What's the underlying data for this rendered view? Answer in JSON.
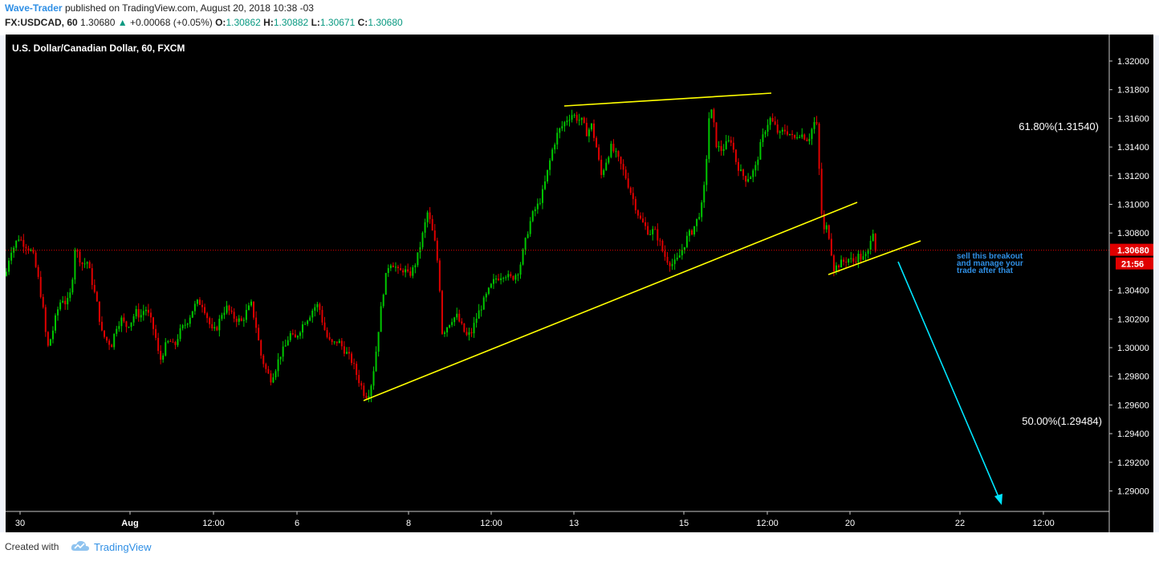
{
  "header": {
    "author": "Wave-Trader",
    "published": "published on TradingView.com, August 20, 2018 10:38 -03",
    "symbol": "FX:USDCAD, 60",
    "last": "1.30680",
    "change": "+0.00068 (+0.05%)",
    "o_label": "O:",
    "o_value": "1.30862",
    "h_label": "H:",
    "h_value": "1.30882",
    "l_label": "L:",
    "l_value": "1.30671",
    "c_label": "C:",
    "c_value": "1.30680"
  },
  "footer": {
    "created": "Created with",
    "brand": "TradingView"
  },
  "chart_data": {
    "type": "candlestick",
    "title": "U.S. Dollar/Canadian Dollar, 60, FXCM",
    "ylim": [
      1.2885,
      1.3222
    ],
    "y_ticks": [
      "1.32000",
      "1.31800",
      "1.31600",
      "1.31400",
      "1.31200",
      "1.31000",
      "1.30800",
      "1.30400",
      "1.30200",
      "1.30000",
      "1.29800",
      "1.29600",
      "1.29400",
      "1.29200",
      "1.29000"
    ],
    "x_ticks": [
      "30",
      "Aug",
      "12:00",
      "6",
      "8",
      "12:00",
      "13",
      "15",
      "12:00",
      "20",
      "22",
      "12:00"
    ],
    "last_price": "1.30680",
    "countdown": "21:56",
    "annotations": {
      "fib_high": "61.80%(1.31540)",
      "fib_low": "50.00%(1.29484)",
      "callout": [
        "sell this breakout",
        "and manage your",
        "trade after that"
      ]
    },
    "colors": {
      "up": "#00c800",
      "down": "#e00000",
      "trendline": "#ffff00",
      "target_arrow": "#00e5ff",
      "price_line": "#e00000",
      "callout_bg": "#d0d0d0",
      "callout_text": "#2f8fe5"
    },
    "close_path": [
      [
        0,
        1.305
      ],
      [
        6,
        1.3068
      ],
      [
        10,
        1.307
      ],
      [
        16,
        1.3077
      ],
      [
        22,
        1.3073
      ],
      [
        28,
        1.307
      ],
      [
        34,
        1.3065
      ],
      [
        40,
        1.305
      ],
      [
        46,
        1.303
      ],
      [
        52,
        1.2999
      ],
      [
        58,
        1.301
      ],
      [
        64,
        1.3025
      ],
      [
        70,
        1.3035
      ],
      [
        76,
        1.303
      ],
      [
        82,
        1.304
      ],
      [
        86,
        1.307
      ],
      [
        90,
        1.3065
      ],
      [
        96,
        1.3058
      ],
      [
        102,
        1.306
      ],
      [
        108,
        1.3045
      ],
      [
        114,
        1.303
      ],
      [
        120,
        1.301
      ],
      [
        126,
        1.3005
      ],
      [
        132,
        1.3002
      ],
      [
        138,
        1.3015
      ],
      [
        144,
        1.302
      ],
      [
        150,
        1.3015
      ],
      [
        156,
        1.3018
      ],
      [
        162,
        1.3025
      ],
      [
        168,
        1.3022
      ],
      [
        174,
        1.3028
      ],
      [
        180,
        1.302
      ],
      [
        186,
        1.301
      ],
      [
        192,
        1.299
      ],
      [
        198,
        1.3
      ],
      [
        204,
        1.3005
      ],
      [
        210,
        1.3
      ],
      [
        216,
        1.301
      ],
      [
        222,
        1.3015
      ],
      [
        228,
        1.302
      ],
      [
        234,
        1.3028
      ],
      [
        240,
        1.3032
      ],
      [
        246,
        1.303
      ],
      [
        252,
        1.302
      ],
      [
        258,
        1.301
      ],
      [
        264,
        1.3015
      ],
      [
        270,
        1.3025
      ],
      [
        276,
        1.3028
      ],
      [
        282,
        1.3022
      ],
      [
        288,
        1.302
      ],
      [
        294,
        1.3018
      ],
      [
        300,
        1.3025
      ],
      [
        306,
        1.303
      ],
      [
        312,
        1.3015
      ],
      [
        318,
        1.2995
      ],
      [
        324,
        1.2985
      ],
      [
        330,
        1.2978
      ],
      [
        336,
        1.2985
      ],
      [
        342,
        1.2995
      ],
      [
        348,
        1.3
      ],
      [
        354,
        1.301
      ],
      [
        360,
        1.3005
      ],
      [
        366,
        1.3012
      ],
      [
        372,
        1.3018
      ],
      [
        378,
        1.3022
      ],
      [
        384,
        1.3028
      ],
      [
        390,
        1.303
      ],
      [
        396,
        1.3015
      ],
      [
        402,
        1.3005
      ],
      [
        408,
        1.3002
      ],
      [
        414,
        1.3005
      ],
      [
        420,
        1.3
      ],
      [
        426,
        1.2995
      ],
      [
        432,
        1.299
      ],
      [
        438,
        1.298
      ],
      [
        444,
        1.2972
      ],
      [
        448,
        1.2966
      ],
      [
        454,
        1.297
      ],
      [
        460,
        1.299
      ],
      [
        466,
        1.302
      ],
      [
        472,
        1.3045
      ],
      [
        478,
        1.306
      ],
      [
        484,
        1.3058
      ],
      [
        490,
        1.3052
      ],
      [
        496,
        1.3055
      ],
      [
        502,
        1.305
      ],
      [
        508,
        1.3055
      ],
      [
        514,
        1.3065
      ],
      [
        520,
        1.308
      ],
      [
        526,
        1.3095
      ],
      [
        530,
        1.3085
      ],
      [
        536,
        1.307
      ],
      [
        540,
        1.305
      ],
      [
        544,
        1.301
      ],
      [
        550,
        1.3015
      ],
      [
        556,
        1.302
      ],
      [
        562,
        1.3022
      ],
      [
        568,
        1.3015
      ],
      [
        574,
        1.3008
      ],
      [
        580,
        1.301
      ],
      [
        586,
        1.302
      ],
      [
        592,
        1.3028
      ],
      [
        598,
        1.3035
      ],
      [
        604,
        1.3042
      ],
      [
        610,
        1.3048
      ],
      [
        616,
        1.305
      ],
      [
        622,
        1.3052
      ],
      [
        628,
        1.3048
      ],
      [
        634,
        1.305
      ],
      [
        640,
        1.3055
      ],
      [
        646,
        1.307
      ],
      [
        652,
        1.3085
      ],
      [
        658,
        1.3095
      ],
      [
        664,
        1.31
      ],
      [
        670,
        1.311
      ],
      [
        676,
        1.3125
      ],
      [
        682,
        1.314
      ],
      [
        688,
        1.315
      ],
      [
        694,
        1.3155
      ],
      [
        700,
        1.316
      ],
      [
        706,
        1.3163
      ],
      [
        712,
        1.316
      ],
      [
        718,
        1.3158
      ],
      [
        724,
        1.315
      ],
      [
        730,
        1.3155
      ],
      [
        736,
        1.314
      ],
      [
        742,
        1.312
      ],
      [
        748,
        1.313
      ],
      [
        754,
        1.314
      ],
      [
        760,
        1.3135
      ],
      [
        766,
        1.3128
      ],
      [
        772,
        1.312
      ],
      [
        778,
        1.311
      ],
      [
        784,
        1.31
      ],
      [
        790,
        1.309
      ],
      [
        796,
        1.3085
      ],
      [
        802,
        1.308
      ],
      [
        808,
        1.3082
      ],
      [
        814,
        1.3075
      ],
      [
        820,
        1.3065
      ],
      [
        826,
        1.306
      ],
      [
        832,
        1.3058
      ],
      [
        838,
        1.3062
      ],
      [
        844,
        1.307
      ],
      [
        850,
        1.3078
      ],
      [
        856,
        1.3082
      ],
      [
        862,
        1.309
      ],
      [
        868,
        1.31
      ],
      [
        872,
        1.312
      ],
      [
        876,
        1.316
      ],
      [
        880,
        1.3165
      ],
      [
        886,
        1.314
      ],
      [
        892,
        1.3138
      ],
      [
        898,
        1.3142
      ],
      [
        904,
        1.3145
      ],
      [
        910,
        1.313
      ],
      [
        916,
        1.3122
      ],
      [
        922,
        1.3118
      ],
      [
        928,
        1.312
      ],
      [
        934,
        1.3125
      ],
      [
        940,
        1.314
      ],
      [
        946,
        1.3152
      ],
      [
        952,
        1.316
      ],
      [
        958,
        1.3155
      ],
      [
        964,
        1.3148
      ],
      [
        970,
        1.3152
      ],
      [
        976,
        1.315
      ],
      [
        982,
        1.3145
      ],
      [
        988,
        1.315
      ],
      [
        994,
        1.3148
      ],
      [
        1000,
        1.3145
      ],
      [
        1006,
        1.3155
      ],
      [
        1010,
        1.316
      ],
      [
        1014,
        1.312
      ],
      [
        1018,
        1.308
      ],
      [
        1024,
        1.3085
      ],
      [
        1028,
        1.307
      ],
      [
        1032,
        1.3055
      ],
      [
        1038,
        1.3058
      ],
      [
        1044,
        1.306
      ],
      [
        1050,
        1.3062
      ],
      [
        1056,
        1.306
      ],
      [
        1062,
        1.3064
      ],
      [
        1068,
        1.3062
      ],
      [
        1074,
        1.3065
      ],
      [
        1080,
        1.3085
      ],
      [
        1084,
        1.3068
      ]
    ]
  }
}
